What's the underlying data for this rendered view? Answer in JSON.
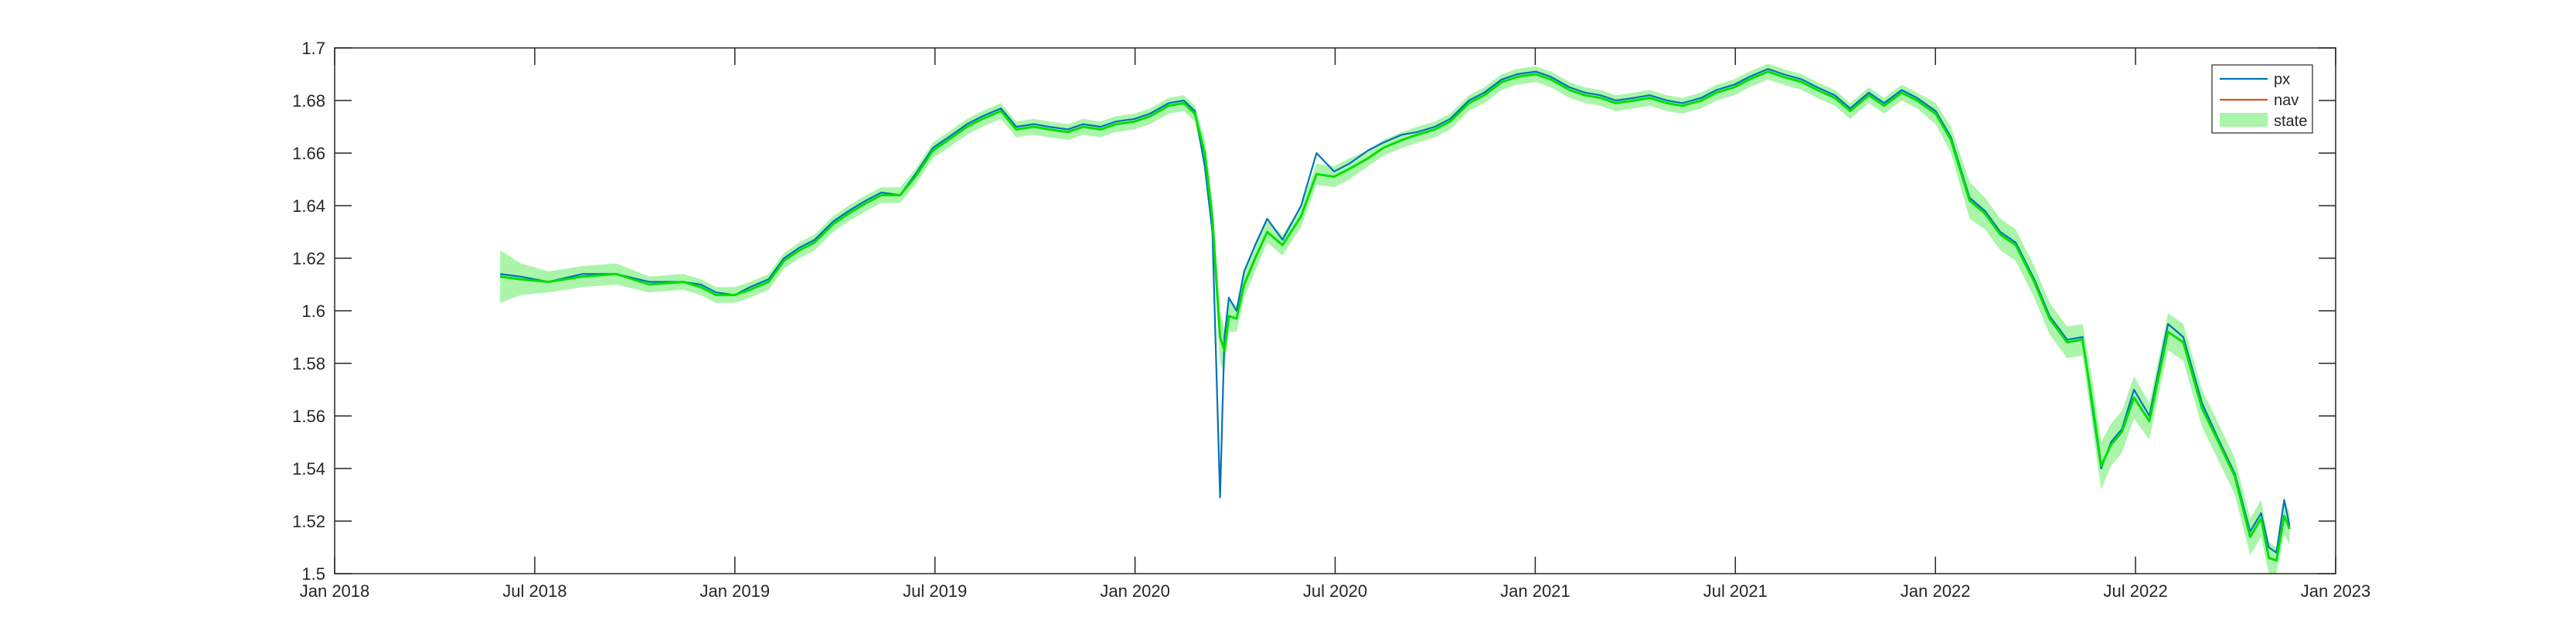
{
  "chart_data": {
    "type": "line",
    "title": "",
    "xlabel": "",
    "ylabel": "",
    "x_ticks": [
      "Jan 2018",
      "Jul 2018",
      "Jan 2019",
      "Jul 2019",
      "Jan 2020",
      "Jul 2020",
      "Jan 2021",
      "Jul 2021",
      "Jan 2022",
      "Jul 2022",
      "Jan 2023"
    ],
    "y_ticks": [
      "1.5",
      "1.52",
      "1.54",
      "1.56",
      "1.58",
      "1.6",
      "1.62",
      "1.64",
      "1.66",
      "1.68",
      "1.7"
    ],
    "xlim": [
      "2018-01-01",
      "2023-01-01"
    ],
    "ylim": [
      1.5,
      1.7
    ],
    "grid": false,
    "legend_position": "top-right",
    "colors": {
      "px": "#0072BD",
      "nav": "#D95319",
      "state_line": "#00E000",
      "state_band": "#AAF5AA"
    },
    "x": [
      "2018-06-01",
      "2018-06-20",
      "2018-07-15",
      "2018-08-15",
      "2018-09-15",
      "2018-10-15",
      "2018-11-15",
      "2018-12-01",
      "2018-12-15",
      "2019-01-01",
      "2019-01-15",
      "2019-02-01",
      "2019-02-15",
      "2019-03-01",
      "2019-03-15",
      "2019-04-01",
      "2019-04-15",
      "2019-05-01",
      "2019-05-15",
      "2019-06-01",
      "2019-06-15",
      "2019-07-01",
      "2019-07-15",
      "2019-08-01",
      "2019-08-15",
      "2019-09-01",
      "2019-09-15",
      "2019-10-01",
      "2019-10-15",
      "2019-11-01",
      "2019-11-15",
      "2019-12-01",
      "2019-12-15",
      "2020-01-01",
      "2020-01-15",
      "2020-02-01",
      "2020-02-15",
      "2020-02-25",
      "2020-03-05",
      "2020-03-12",
      "2020-03-19",
      "2020-03-23",
      "2020-03-27",
      "2020-04-03",
      "2020-04-10",
      "2020-04-20",
      "2020-05-01",
      "2020-05-15",
      "2020-06-01",
      "2020-06-15",
      "2020-07-01",
      "2020-07-15",
      "2020-08-01",
      "2020-08-15",
      "2020-09-01",
      "2020-09-15",
      "2020-10-01",
      "2020-10-15",
      "2020-11-01",
      "2020-11-15",
      "2020-12-01",
      "2020-12-15",
      "2021-01-01",
      "2021-01-15",
      "2021-02-01",
      "2021-02-15",
      "2021-03-01",
      "2021-03-15",
      "2021-04-01",
      "2021-04-15",
      "2021-05-01",
      "2021-05-15",
      "2021-06-01",
      "2021-06-15",
      "2021-07-01",
      "2021-07-15",
      "2021-08-01",
      "2021-08-15",
      "2021-09-01",
      "2021-09-15",
      "2021-10-01",
      "2021-10-15",
      "2021-11-01",
      "2021-11-15",
      "2021-12-01",
      "2021-12-15",
      "2022-01-01",
      "2022-01-15",
      "2022-02-01",
      "2022-02-15",
      "2022-03-01",
      "2022-03-15",
      "2022-04-01",
      "2022-04-15",
      "2022-05-01",
      "2022-05-15",
      "2022-05-25",
      "2022-06-01",
      "2022-06-10",
      "2022-06-20",
      "2022-07-01",
      "2022-07-15",
      "2022-08-01",
      "2022-08-15",
      "2022-09-01",
      "2022-09-15",
      "2022-10-01",
      "2022-10-15",
      "2022-10-25",
      "2022-11-01",
      "2022-11-08",
      "2022-11-15",
      "2022-11-20"
    ],
    "series": [
      {
        "name": "px",
        "values": [
          1.614,
          1.613,
          1.611,
          1.614,
          1.614,
          1.611,
          1.611,
          1.61,
          1.607,
          1.606,
          1.609,
          1.612,
          1.62,
          1.624,
          1.627,
          1.634,
          1.638,
          1.642,
          1.645,
          1.644,
          1.652,
          1.662,
          1.666,
          1.671,
          1.674,
          1.677,
          1.67,
          1.671,
          1.67,
          1.669,
          1.671,
          1.67,
          1.672,
          1.673,
          1.675,
          1.679,
          1.68,
          1.676,
          1.655,
          1.63,
          1.529,
          1.59,
          1.605,
          1.6,
          1.615,
          1.625,
          1.635,
          1.627,
          1.64,
          1.66,
          1.653,
          1.656,
          1.661,
          1.664,
          1.667,
          1.668,
          1.67,
          1.673,
          1.68,
          1.683,
          1.688,
          1.69,
          1.691,
          1.689,
          1.685,
          1.683,
          1.682,
          1.68,
          1.681,
          1.682,
          1.68,
          1.679,
          1.681,
          1.684,
          1.686,
          1.689,
          1.692,
          1.69,
          1.688,
          1.685,
          1.682,
          1.677,
          1.683,
          1.679,
          1.684,
          1.681,
          1.676,
          1.666,
          1.643,
          1.638,
          1.63,
          1.626,
          1.612,
          1.598,
          1.589,
          1.59,
          1.56,
          1.54,
          1.55,
          1.555,
          1.57,
          1.56,
          1.595,
          1.59,
          1.565,
          1.552,
          1.538,
          1.516,
          1.523,
          1.51,
          1.508,
          1.528,
          1.518
        ]
      },
      {
        "name": "nav",
        "values": [
          1.613,
          1.612,
          1.611,
          1.613,
          1.614,
          1.61,
          1.611,
          1.609,
          1.606,
          1.606,
          1.608,
          1.611,
          1.619,
          1.623,
          1.626,
          1.633,
          1.637,
          1.641,
          1.644,
          1.644,
          1.651,
          1.661,
          1.665,
          1.67,
          1.673,
          1.676,
          1.669,
          1.67,
          1.669,
          1.668,
          1.67,
          1.669,
          1.671,
          1.672,
          1.674,
          1.678,
          1.679,
          1.675,
          1.66,
          1.635,
          1.59,
          1.585,
          1.598,
          1.597,
          1.61,
          1.62,
          1.63,
          1.625,
          1.636,
          1.652,
          1.651,
          1.654,
          1.658,
          1.662,
          1.665,
          1.667,
          1.669,
          1.672,
          1.679,
          1.682,
          1.687,
          1.689,
          1.69,
          1.688,
          1.684,
          1.682,
          1.681,
          1.679,
          1.68,
          1.681,
          1.679,
          1.678,
          1.68,
          1.683,
          1.685,
          1.688,
          1.691,
          1.689,
          1.687,
          1.684,
          1.681,
          1.676,
          1.682,
          1.678,
          1.683,
          1.68,
          1.675,
          1.665,
          1.642,
          1.637,
          1.629,
          1.625,
          1.611,
          1.597,
          1.588,
          1.589,
          1.562,
          1.541,
          1.549,
          1.554,
          1.567,
          1.558,
          1.592,
          1.588,
          1.563,
          1.551,
          1.537,
          1.514,
          1.521,
          1.506,
          1.505,
          1.522,
          1.517
        ]
      },
      {
        "name": "state",
        "values": [
          1.613,
          1.612,
          1.611,
          1.613,
          1.614,
          1.61,
          1.611,
          1.609,
          1.606,
          1.606,
          1.608,
          1.611,
          1.619,
          1.623,
          1.626,
          1.633,
          1.637,
          1.641,
          1.644,
          1.644,
          1.651,
          1.661,
          1.665,
          1.67,
          1.673,
          1.676,
          1.669,
          1.67,
          1.669,
          1.668,
          1.67,
          1.669,
          1.671,
          1.672,
          1.674,
          1.678,
          1.679,
          1.675,
          1.66,
          1.635,
          1.59,
          1.585,
          1.598,
          1.597,
          1.61,
          1.62,
          1.63,
          1.625,
          1.636,
          1.652,
          1.651,
          1.654,
          1.658,
          1.662,
          1.665,
          1.667,
          1.669,
          1.672,
          1.679,
          1.682,
          1.687,
          1.689,
          1.69,
          1.688,
          1.684,
          1.682,
          1.681,
          1.679,
          1.68,
          1.681,
          1.679,
          1.678,
          1.68,
          1.683,
          1.685,
          1.688,
          1.691,
          1.689,
          1.687,
          1.684,
          1.681,
          1.676,
          1.682,
          1.678,
          1.683,
          1.68,
          1.675,
          1.665,
          1.642,
          1.637,
          1.629,
          1.625,
          1.611,
          1.597,
          1.588,
          1.589,
          1.562,
          1.541,
          1.549,
          1.554,
          1.567,
          1.558,
          1.592,
          1.588,
          1.563,
          1.551,
          1.537,
          1.514,
          1.521,
          1.506,
          1.505,
          1.522,
          1.517
        ]
      }
    ],
    "state_band": {
      "lower": [
        1.603,
        1.606,
        1.607,
        1.609,
        1.61,
        1.607,
        1.608,
        1.606,
        1.603,
        1.603,
        1.605,
        1.608,
        1.616,
        1.62,
        1.623,
        1.63,
        1.634,
        1.638,
        1.641,
        1.641,
        1.648,
        1.658,
        1.662,
        1.667,
        1.67,
        1.673,
        1.666,
        1.667,
        1.666,
        1.665,
        1.667,
        1.666,
        1.668,
        1.669,
        1.671,
        1.675,
        1.676,
        1.672,
        1.655,
        1.628,
        1.58,
        1.577,
        1.592,
        1.592,
        1.605,
        1.615,
        1.626,
        1.621,
        1.632,
        1.648,
        1.647,
        1.65,
        1.655,
        1.659,
        1.662,
        1.664,
        1.666,
        1.669,
        1.676,
        1.679,
        1.684,
        1.686,
        1.687,
        1.685,
        1.681,
        1.679,
        1.678,
        1.676,
        1.677,
        1.678,
        1.676,
        1.675,
        1.677,
        1.68,
        1.682,
        1.685,
        1.688,
        1.686,
        1.684,
        1.681,
        1.678,
        1.673,
        1.679,
        1.675,
        1.68,
        1.677,
        1.671,
        1.66,
        1.635,
        1.631,
        1.623,
        1.619,
        1.605,
        1.591,
        1.582,
        1.583,
        1.553,
        1.532,
        1.541,
        1.546,
        1.559,
        1.551,
        1.585,
        1.581,
        1.556,
        1.544,
        1.53,
        1.507,
        1.514,
        1.5,
        1.5,
        1.515,
        1.511
      ],
      "upper": [
        1.623,
        1.618,
        1.615,
        1.617,
        1.618,
        1.613,
        1.614,
        1.612,
        1.609,
        1.609,
        1.611,
        1.614,
        1.622,
        1.626,
        1.629,
        1.636,
        1.64,
        1.644,
        1.647,
        1.647,
        1.654,
        1.664,
        1.668,
        1.673,
        1.676,
        1.679,
        1.672,
        1.673,
        1.672,
        1.671,
        1.673,
        1.672,
        1.674,
        1.675,
        1.677,
        1.681,
        1.682,
        1.678,
        1.665,
        1.642,
        1.6,
        1.593,
        1.604,
        1.602,
        1.615,
        1.625,
        1.634,
        1.629,
        1.64,
        1.656,
        1.655,
        1.658,
        1.661,
        1.665,
        1.668,
        1.67,
        1.672,
        1.675,
        1.682,
        1.685,
        1.69,
        1.692,
        1.693,
        1.691,
        1.687,
        1.685,
        1.684,
        1.682,
        1.683,
        1.684,
        1.682,
        1.681,
        1.683,
        1.686,
        1.688,
        1.691,
        1.694,
        1.692,
        1.69,
        1.687,
        1.684,
        1.679,
        1.685,
        1.681,
        1.686,
        1.683,
        1.679,
        1.67,
        1.649,
        1.643,
        1.635,
        1.631,
        1.617,
        1.603,
        1.594,
        1.595,
        1.571,
        1.55,
        1.557,
        1.562,
        1.575,
        1.565,
        1.599,
        1.595,
        1.57,
        1.558,
        1.544,
        1.521,
        1.528,
        1.512,
        1.51,
        1.529,
        1.523
      ]
    }
  }
}
